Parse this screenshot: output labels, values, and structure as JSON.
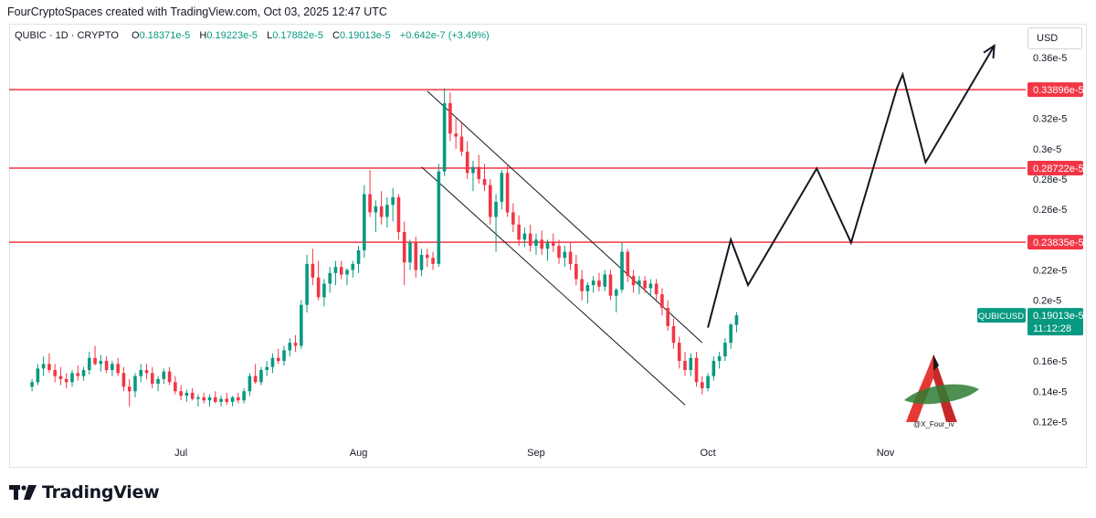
{
  "header": {
    "caption": "FourCryptoSpaces created with TradingView.com, Oct 03, 2025 12:47 UTC"
  },
  "legend": {
    "symbol": "QUBIC · 1D · CRYPTO",
    "open_label": "O",
    "open": "0.18371e-5",
    "high_label": "H",
    "high": "0.19223e-5",
    "low_label": "L",
    "low": "0.17882e-5",
    "close_label": "C",
    "close": "0.19013e-5",
    "change": "+0.642e-7 (+3.49%)"
  },
  "currency": "USD",
  "price_scale": {
    "ticks": [
      {
        "value": 0.36,
        "label": "0.36e-5"
      },
      {
        "value": 0.32,
        "label": "0.32e-5"
      },
      {
        "value": 0.3,
        "label": "0.3e-5"
      },
      {
        "value": 0.28,
        "label": "0.28e-5"
      },
      {
        "value": 0.26,
        "label": "0.26e-5"
      },
      {
        "value": 0.22,
        "label": "0.22e-5"
      },
      {
        "value": 0.2,
        "label": "0.2e-5"
      },
      {
        "value": 0.16,
        "label": "0.16e-5"
      },
      {
        "value": 0.14,
        "label": "0.14e-5"
      },
      {
        "value": 0.12,
        "label": "0.12e-5"
      }
    ]
  },
  "time_scale": {
    "ticks": [
      {
        "date": "2025-07-01",
        "label": "Jul"
      },
      {
        "date": "2025-08-01",
        "label": "Aug"
      },
      {
        "date": "2025-09-01",
        "label": "Sep"
      },
      {
        "date": "2025-10-01",
        "label": "Oct"
      },
      {
        "date": "2025-11-01",
        "label": "Nov"
      }
    ]
  },
  "chart_data": {
    "type": "candlestick",
    "symbol": "QUBIC",
    "interval": "1D",
    "y_unit": "e-5 USD",
    "x_range": [
      "2025-06-01",
      "2025-11-25"
    ],
    "ylim": [
      0.104,
      0.374
    ],
    "grid": false,
    "up_color": "#089981",
    "down_color": "#f23645",
    "first_date": "2025-06-05",
    "candles": [
      {
        "o": 0.143,
        "h": 0.148,
        "l": 0.14,
        "c": 0.146
      },
      {
        "o": 0.146,
        "h": 0.158,
        "l": 0.144,
        "c": 0.155
      },
      {
        "o": 0.155,
        "h": 0.163,
        "l": 0.15,
        "c": 0.158
      },
      {
        "o": 0.158,
        "h": 0.165,
        "l": 0.152,
        "c": 0.154
      },
      {
        "o": 0.154,
        "h": 0.158,
        "l": 0.146,
        "c": 0.15
      },
      {
        "o": 0.15,
        "h": 0.156,
        "l": 0.144,
        "c": 0.148
      },
      {
        "o": 0.148,
        "h": 0.152,
        "l": 0.142,
        "c": 0.146
      },
      {
        "o": 0.146,
        "h": 0.154,
        "l": 0.143,
        "c": 0.152
      },
      {
        "o": 0.152,
        "h": 0.157,
        "l": 0.147,
        "c": 0.15
      },
      {
        "o": 0.15,
        "h": 0.156,
        "l": 0.147,
        "c": 0.154
      },
      {
        "o": 0.154,
        "h": 0.166,
        "l": 0.151,
        "c": 0.162
      },
      {
        "o": 0.162,
        "h": 0.17,
        "l": 0.157,
        "c": 0.158
      },
      {
        "o": 0.158,
        "h": 0.164,
        "l": 0.153,
        "c": 0.16
      },
      {
        "o": 0.16,
        "h": 0.163,
        "l": 0.152,
        "c": 0.154
      },
      {
        "o": 0.154,
        "h": 0.16,
        "l": 0.15,
        "c": 0.158
      },
      {
        "o": 0.158,
        "h": 0.162,
        "l": 0.15,
        "c": 0.152
      },
      {
        "o": 0.152,
        "h": 0.156,
        "l": 0.14,
        "c": 0.143
      },
      {
        "o": 0.143,
        "h": 0.148,
        "l": 0.13,
        "c": 0.14
      },
      {
        "o": 0.14,
        "h": 0.152,
        "l": 0.136,
        "c": 0.15
      },
      {
        "o": 0.15,
        "h": 0.158,
        "l": 0.146,
        "c": 0.154
      },
      {
        "o": 0.154,
        "h": 0.158,
        "l": 0.148,
        "c": 0.152
      },
      {
        "o": 0.152,
        "h": 0.156,
        "l": 0.142,
        "c": 0.145
      },
      {
        "o": 0.145,
        "h": 0.15,
        "l": 0.14,
        "c": 0.148
      },
      {
        "o": 0.148,
        "h": 0.155,
        "l": 0.145,
        "c": 0.153
      },
      {
        "o": 0.153,
        "h": 0.156,
        "l": 0.144,
        "c": 0.146
      },
      {
        "o": 0.146,
        "h": 0.15,
        "l": 0.138,
        "c": 0.14
      },
      {
        "o": 0.14,
        "h": 0.144,
        "l": 0.134,
        "c": 0.137
      },
      {
        "o": 0.137,
        "h": 0.141,
        "l": 0.133,
        "c": 0.139
      },
      {
        "o": 0.139,
        "h": 0.142,
        "l": 0.134,
        "c": 0.135
      },
      {
        "o": 0.135,
        "h": 0.138,
        "l": 0.13,
        "c": 0.136
      },
      {
        "o": 0.136,
        "h": 0.139,
        "l": 0.132,
        "c": 0.134
      },
      {
        "o": 0.134,
        "h": 0.138,
        "l": 0.13,
        "c": 0.136
      },
      {
        "o": 0.136,
        "h": 0.14,
        "l": 0.132,
        "c": 0.133
      },
      {
        "o": 0.133,
        "h": 0.137,
        "l": 0.13,
        "c": 0.135
      },
      {
        "o": 0.135,
        "h": 0.139,
        "l": 0.131,
        "c": 0.133
      },
      {
        "o": 0.133,
        "h": 0.137,
        "l": 0.13,
        "c": 0.136
      },
      {
        "o": 0.136,
        "h": 0.139,
        "l": 0.132,
        "c": 0.134
      },
      {
        "o": 0.134,
        "h": 0.142,
        "l": 0.132,
        "c": 0.14
      },
      {
        "o": 0.14,
        "h": 0.152,
        "l": 0.137,
        "c": 0.15
      },
      {
        "o": 0.15,
        "h": 0.158,
        "l": 0.145,
        "c": 0.146
      },
      {
        "o": 0.146,
        "h": 0.156,
        "l": 0.144,
        "c": 0.154
      },
      {
        "o": 0.154,
        "h": 0.16,
        "l": 0.15,
        "c": 0.156
      },
      {
        "o": 0.156,
        "h": 0.165,
        "l": 0.152,
        "c": 0.162
      },
      {
        "o": 0.162,
        "h": 0.168,
        "l": 0.158,
        "c": 0.16
      },
      {
        "o": 0.16,
        "h": 0.17,
        "l": 0.157,
        "c": 0.167
      },
      {
        "o": 0.167,
        "h": 0.175,
        "l": 0.163,
        "c": 0.172
      },
      {
        "o": 0.172,
        "h": 0.177,
        "l": 0.166,
        "c": 0.17
      },
      {
        "o": 0.17,
        "h": 0.2,
        "l": 0.168,
        "c": 0.197
      },
      {
        "o": 0.197,
        "h": 0.23,
        "l": 0.192,
        "c": 0.224
      },
      {
        "o": 0.224,
        "h": 0.234,
        "l": 0.21,
        "c": 0.215
      },
      {
        "o": 0.215,
        "h": 0.226,
        "l": 0.2,
        "c": 0.202
      },
      {
        "o": 0.202,
        "h": 0.214,
        "l": 0.196,
        "c": 0.211
      },
      {
        "o": 0.211,
        "h": 0.222,
        "l": 0.205,
        "c": 0.218
      },
      {
        "o": 0.218,
        "h": 0.226,
        "l": 0.21,
        "c": 0.222
      },
      {
        "o": 0.222,
        "h": 0.226,
        "l": 0.214,
        "c": 0.217
      },
      {
        "o": 0.217,
        "h": 0.221,
        "l": 0.21,
        "c": 0.22
      },
      {
        "o": 0.22,
        "h": 0.226,
        "l": 0.215,
        "c": 0.224
      },
      {
        "o": 0.224,
        "h": 0.236,
        "l": 0.218,
        "c": 0.233
      },
      {
        "o": 0.233,
        "h": 0.276,
        "l": 0.228,
        "c": 0.27
      },
      {
        "o": 0.27,
        "h": 0.286,
        "l": 0.255,
        "c": 0.258
      },
      {
        "o": 0.258,
        "h": 0.266,
        "l": 0.245,
        "c": 0.262
      },
      {
        "o": 0.262,
        "h": 0.272,
        "l": 0.25,
        "c": 0.255
      },
      {
        "o": 0.255,
        "h": 0.268,
        "l": 0.248,
        "c": 0.263
      },
      {
        "o": 0.263,
        "h": 0.274,
        "l": 0.252,
        "c": 0.268
      },
      {
        "o": 0.268,
        "h": 0.27,
        "l": 0.24,
        "c": 0.245
      },
      {
        "o": 0.245,
        "h": 0.252,
        "l": 0.21,
        "c": 0.225
      },
      {
        "o": 0.225,
        "h": 0.24,
        "l": 0.22,
        "c": 0.238
      },
      {
        "o": 0.238,
        "h": 0.242,
        "l": 0.215,
        "c": 0.22
      },
      {
        "o": 0.22,
        "h": 0.234,
        "l": 0.216,
        "c": 0.23
      },
      {
        "o": 0.23,
        "h": 0.234,
        "l": 0.222,
        "c": 0.228
      },
      {
        "o": 0.228,
        "h": 0.232,
        "l": 0.22,
        "c": 0.224
      },
      {
        "o": 0.224,
        "h": 0.29,
        "l": 0.222,
        "c": 0.285
      },
      {
        "o": 0.285,
        "h": 0.34,
        "l": 0.282,
        "c": 0.33
      },
      {
        "o": 0.33,
        "h": 0.337,
        "l": 0.305,
        "c": 0.31
      },
      {
        "o": 0.31,
        "h": 0.32,
        "l": 0.3,
        "c": 0.308
      },
      {
        "o": 0.308,
        "h": 0.318,
        "l": 0.295,
        "c": 0.298
      },
      {
        "o": 0.298,
        "h": 0.305,
        "l": 0.28,
        "c": 0.284
      },
      {
        "o": 0.284,
        "h": 0.292,
        "l": 0.272,
        "c": 0.288
      },
      {
        "o": 0.288,
        "h": 0.296,
        "l": 0.277,
        "c": 0.28
      },
      {
        "o": 0.28,
        "h": 0.29,
        "l": 0.272,
        "c": 0.276
      },
      {
        "o": 0.276,
        "h": 0.28,
        "l": 0.25,
        "c": 0.255
      },
      {
        "o": 0.255,
        "h": 0.27,
        "l": 0.232,
        "c": 0.265
      },
      {
        "o": 0.265,
        "h": 0.286,
        "l": 0.26,
        "c": 0.284
      },
      {
        "o": 0.284,
        "h": 0.29,
        "l": 0.255,
        "c": 0.258
      },
      {
        "o": 0.258,
        "h": 0.264,
        "l": 0.245,
        "c": 0.25
      },
      {
        "o": 0.25,
        "h": 0.256,
        "l": 0.236,
        "c": 0.24
      },
      {
        "o": 0.24,
        "h": 0.248,
        "l": 0.235,
        "c": 0.244
      },
      {
        "o": 0.244,
        "h": 0.25,
        "l": 0.232,
        "c": 0.236
      },
      {
        "o": 0.236,
        "h": 0.244,
        "l": 0.23,
        "c": 0.24
      },
      {
        "o": 0.24,
        "h": 0.246,
        "l": 0.23,
        "c": 0.234
      },
      {
        "o": 0.234,
        "h": 0.24,
        "l": 0.226,
        "c": 0.238
      },
      {
        "o": 0.238,
        "h": 0.244,
        "l": 0.232,
        "c": 0.236
      },
      {
        "o": 0.236,
        "h": 0.24,
        "l": 0.224,
        "c": 0.228
      },
      {
        "o": 0.228,
        "h": 0.236,
        "l": 0.222,
        "c": 0.232
      },
      {
        "o": 0.232,
        "h": 0.238,
        "l": 0.22,
        "c": 0.224
      },
      {
        "o": 0.224,
        "h": 0.23,
        "l": 0.21,
        "c": 0.214
      },
      {
        "o": 0.214,
        "h": 0.22,
        "l": 0.2,
        "c": 0.206
      },
      {
        "o": 0.206,
        "h": 0.212,
        "l": 0.198,
        "c": 0.21
      },
      {
        "o": 0.21,
        "h": 0.216,
        "l": 0.205,
        "c": 0.213
      },
      {
        "o": 0.213,
        "h": 0.218,
        "l": 0.206,
        "c": 0.209
      },
      {
        "o": 0.209,
        "h": 0.22,
        "l": 0.206,
        "c": 0.217
      },
      {
        "o": 0.217,
        "h": 0.22,
        "l": 0.2,
        "c": 0.203
      },
      {
        "o": 0.203,
        "h": 0.208,
        "l": 0.192,
        "c": 0.207
      },
      {
        "o": 0.207,
        "h": 0.238,
        "l": 0.205,
        "c": 0.232
      },
      {
        "o": 0.232,
        "h": 0.234,
        "l": 0.212,
        "c": 0.216
      },
      {
        "o": 0.216,
        "h": 0.22,
        "l": 0.205,
        "c": 0.21
      },
      {
        "o": 0.21,
        "h": 0.216,
        "l": 0.204,
        "c": 0.213
      },
      {
        "o": 0.213,
        "h": 0.216,
        "l": 0.205,
        "c": 0.208
      },
      {
        "o": 0.208,
        "h": 0.214,
        "l": 0.203,
        "c": 0.211
      },
      {
        "o": 0.211,
        "h": 0.214,
        "l": 0.2,
        "c": 0.204
      },
      {
        "o": 0.204,
        "h": 0.208,
        "l": 0.19,
        "c": 0.195
      },
      {
        "o": 0.195,
        "h": 0.2,
        "l": 0.18,
        "c": 0.183
      },
      {
        "o": 0.183,
        "h": 0.188,
        "l": 0.168,
        "c": 0.172
      },
      {
        "o": 0.172,
        "h": 0.176,
        "l": 0.155,
        "c": 0.16
      },
      {
        "o": 0.16,
        "h": 0.166,
        "l": 0.15,
        "c": 0.154
      },
      {
        "o": 0.154,
        "h": 0.165,
        "l": 0.15,
        "c": 0.162
      },
      {
        "o": 0.162,
        "h": 0.166,
        "l": 0.143,
        "c": 0.146
      },
      {
        "o": 0.146,
        "h": 0.15,
        "l": 0.138,
        "c": 0.142
      },
      {
        "o": 0.142,
        "h": 0.152,
        "l": 0.14,
        "c": 0.15
      },
      {
        "o": 0.15,
        "h": 0.163,
        "l": 0.147,
        "c": 0.16
      },
      {
        "o": 0.16,
        "h": 0.166,
        "l": 0.155,
        "c": 0.163
      },
      {
        "o": 0.163,
        "h": 0.175,
        "l": 0.16,
        "c": 0.172
      },
      {
        "o": 0.172,
        "h": 0.185,
        "l": 0.168,
        "c": 0.184
      },
      {
        "o": 0.18371,
        "h": 0.19223,
        "l": 0.17882,
        "c": 0.19013
      }
    ],
    "horizontal_levels": [
      {
        "value": 0.33896,
        "label": "0.33896e-5",
        "color": "#f23645"
      },
      {
        "value": 0.28722,
        "label": "0.28722e-5",
        "color": "#f23645"
      },
      {
        "value": 0.23835,
        "label": "0.23835e-5",
        "color": "#f23645"
      }
    ],
    "last_price": {
      "symbol_tag": "QUBICUSD",
      "value": 0.19013,
      "label": "0.19013e-5",
      "countdown": "11:12:28",
      "color": "#089981"
    },
    "channel": {
      "upper": [
        {
          "date": "2025-08-13",
          "y": 0.338
        },
        {
          "date": "2025-09-30",
          "y": 0.172
        }
      ],
      "lower": [
        {
          "date": "2025-08-12",
          "y": 0.288
        },
        {
          "date": "2025-09-27",
          "y": 0.131
        }
      ]
    },
    "projection_path": [
      {
        "date": "2025-10-01",
        "y": 0.182
      },
      {
        "date": "2025-10-05",
        "y": 0.24
      },
      {
        "date": "2025-10-08",
        "y": 0.21
      },
      {
        "date": "2025-10-20",
        "y": 0.287
      },
      {
        "date": "2025-10-26",
        "y": 0.238
      },
      {
        "date": "2025-11-03",
        "y": 0.34
      },
      {
        "date": "2025-11-04",
        "y": 0.349
      },
      {
        "date": "2025-11-08",
        "y": 0.291
      },
      {
        "date": "2025-11-20",
        "y": 0.368
      }
    ]
  },
  "watermark": {
    "handle": "@X_Four_iv"
  },
  "brand": {
    "name": "TradingView"
  }
}
